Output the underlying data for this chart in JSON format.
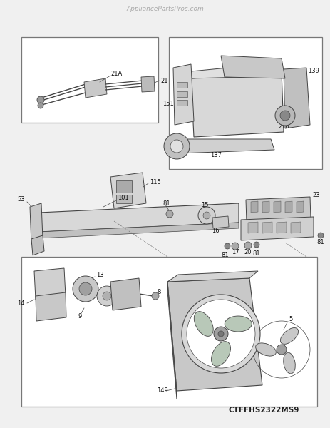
{
  "bg_color": "#f0f0f0",
  "title_text": "AppliancePartsPros.com",
  "title_color": "#aaaaaa",
  "title_fontsize": 6.5,
  "footer_text": "CTFFHS2322MS9",
  "footer_fontsize": 7.5,
  "footer_color": "#222222",
  "line_color": "#444444",
  "box_line_color": "#777777",
  "label_fontsize": 6,
  "label_color": "#111111",
  "fig_w": 4.64,
  "fig_h": 6.0,
  "dpi": 100
}
